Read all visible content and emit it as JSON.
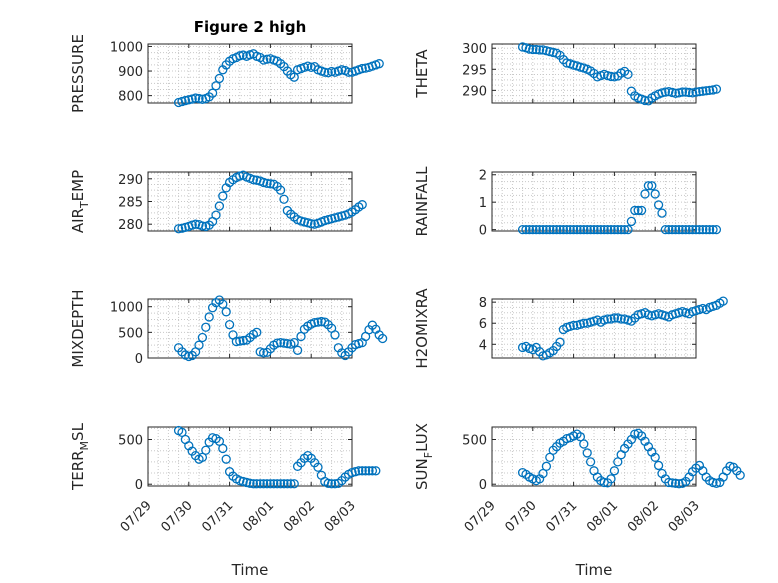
{
  "chart_data": [
    {
      "type": "scatter",
      "title": "Figure 2 high",
      "ylabel": "PRESSURE",
      "xlabel": "",
      "ylim": [
        770,
        1010
      ],
      "yticks": [
        800,
        900,
        1000
      ],
      "show_xticklabels": false,
      "grid": true,
      "marker": "circle",
      "color": "#0072BD",
      "x_start": "07/29 18:00",
      "x_step_hours": 2,
      "values": [
        772,
        776,
        780,
        783,
        786,
        790,
        788,
        785,
        788,
        795,
        810,
        840,
        870,
        905,
        925,
        940,
        950,
        955,
        962,
        965,
        960,
        966,
        970,
        960,
        955,
        945,
        948,
        950,
        945,
        940,
        930,
        918,
        900,
        885,
        875,
        905,
        910,
        915,
        920,
        915,
        918,
        905,
        900,
        895,
        893,
        898,
        895,
        900,
        905,
        902,
        895,
        895,
        900,
        905,
        910,
        912,
        915,
        920,
        925,
        930
      ]
    },
    {
      "type": "scatter",
      "title": "",
      "ylabel": "THETA",
      "xlabel": "",
      "ylim": [
        287,
        301
      ],
      "yticks": [
        290,
        295,
        300
      ],
      "show_xticklabels": false,
      "grid": true,
      "marker": "circle",
      "color": "#0072BD",
      "x_start": "07/29 18:00",
      "x_step_hours": 2,
      "values": [
        300.3,
        300.1,
        299.8,
        299.7,
        299.7,
        299.6,
        299.6,
        299.4,
        299.2,
        299.0,
        298.8,
        298.3,
        297.3,
        296.5,
        296.3,
        296.0,
        295.8,
        295.5,
        295.3,
        295.0,
        294.6,
        294.0,
        293.2,
        293.5,
        293.8,
        293.5,
        293.3,
        293.2,
        293.4,
        294.1,
        294.5,
        293.8,
        289.8,
        288.7,
        288.2,
        287.9,
        287.6,
        287.5,
        288.2,
        288.7,
        289.1,
        289.4,
        289.6,
        289.7,
        289.5,
        289.3,
        289.4,
        289.6,
        289.6,
        289.5,
        289.4,
        289.6,
        289.7,
        289.8,
        289.9,
        290.0,
        290.1,
        290.3
      ]
    },
    {
      "type": "scatter",
      "title": "",
      "ylabel": "AIR_TEMP",
      "ylabel_parts": [
        "AIR",
        "T",
        "EMP"
      ],
      "xlabel": "",
      "ylim": [
        278.5,
        291.5
      ],
      "yticks": [
        280,
        285,
        290
      ],
      "show_xticklabels": false,
      "grid": true,
      "marker": "circle",
      "color": "#0072BD",
      "x_start": "07/29 18:00",
      "x_step_hours": 2,
      "values": [
        279.0,
        279.1,
        279.3,
        279.5,
        279.8,
        280.0,
        279.9,
        279.6,
        279.5,
        279.8,
        280.6,
        282.0,
        284.0,
        286.2,
        288.0,
        289.2,
        289.8,
        290.3,
        290.6,
        290.8,
        290.4,
        290.1,
        289.8,
        289.7,
        289.5,
        289.2,
        289.0,
        288.9,
        288.8,
        288.3,
        287.5,
        285.5,
        283.0,
        282.2,
        281.6,
        281.0,
        280.7,
        280.5,
        280.3,
        280.1,
        280.0,
        280.2,
        280.5,
        280.8,
        281.0,
        281.2,
        281.4,
        281.6,
        281.8,
        282.0,
        282.3,
        282.7,
        283.2,
        283.8,
        284.3
      ]
    },
    {
      "type": "scatter",
      "title": "",
      "ylabel": "RAINFALL",
      "xlabel": "",
      "ylim": [
        -0.05,
        2.1
      ],
      "yticks": [
        0,
        1,
        2
      ],
      "show_xticklabels": false,
      "grid": true,
      "marker": "circle",
      "color": "#0072BD",
      "x_start": "07/29 18:00",
      "x_step_hours": 2,
      "values": [
        0,
        0,
        0,
        0,
        0,
        0,
        0,
        0,
        0,
        0,
        0,
        0,
        0,
        0,
        0,
        0,
        0,
        0,
        0,
        0,
        0,
        0,
        0,
        0,
        0,
        0,
        0,
        0,
        0,
        0,
        0,
        0,
        0.3,
        0.7,
        0.7,
        0.7,
        1.3,
        1.6,
        1.6,
        1.3,
        0.9,
        0.6,
        0,
        0,
        0,
        0,
        0,
        0,
        0,
        0,
        0,
        0,
        0,
        0,
        0,
        0,
        0,
        0
      ]
    },
    {
      "type": "scatter",
      "title": "",
      "ylabel": "MIXDEPTH",
      "xlabel": "",
      "ylim": [
        0,
        1150
      ],
      "yticks": [
        0,
        500,
        1000
      ],
      "show_xticklabels": false,
      "grid": true,
      "marker": "circle",
      "color": "#0072BD",
      "x_start": "07/29 18:00",
      "x_step_hours": 2,
      "values": [
        200,
        120,
        60,
        30,
        50,
        120,
        250,
        400,
        600,
        800,
        980,
        1080,
        1130,
        1050,
        900,
        650,
        450,
        320,
        330,
        340,
        350,
        400,
        460,
        500,
        120,
        100,
        110,
        180,
        250,
        290,
        300,
        290,
        280,
        270,
        300,
        150,
        420,
        560,
        620,
        660,
        690,
        700,
        710,
        700,
        650,
        580,
        450,
        200,
        100,
        50,
        120,
        200,
        260,
        280,
        300,
        420,
        550,
        640,
        560,
        450,
        380
      ]
    },
    {
      "type": "scatter",
      "title": "",
      "ylabel": "H2OMIXRA",
      "xlabel": "",
      "ylim": [
        2.7,
        8.3
      ],
      "yticks": [
        4,
        6,
        8
      ],
      "show_xticklabels": false,
      "grid": true,
      "marker": "circle",
      "color": "#0072BD",
      "x_start": "07/29 18:00",
      "x_step_hours": 2,
      "values": [
        3.7,
        3.8,
        3.6,
        3.5,
        3.7,
        3.3,
        2.9,
        3.0,
        3.2,
        3.4,
        3.8,
        4.2,
        5.4,
        5.6,
        5.7,
        5.8,
        5.8,
        5.9,
        6.0,
        6.0,
        6.1,
        6.2,
        6.3,
        6.1,
        6.3,
        6.4,
        6.4,
        6.5,
        6.5,
        6.4,
        6.4,
        6.3,
        6.2,
        6.5,
        6.8,
        6.9,
        7.0,
        6.8,
        6.7,
        6.8,
        6.9,
        6.8,
        6.7,
        6.6,
        6.8,
        6.9,
        7.0,
        7.1,
        7.0,
        6.9,
        7.1,
        7.2,
        7.3,
        7.4,
        7.3,
        7.5,
        7.6,
        7.7,
        7.9,
        8.1
      ]
    },
    {
      "type": "scatter",
      "title": "",
      "ylabel": "TERR_MSL",
      "ylabel_parts": [
        "TERR",
        "M",
        "SL"
      ],
      "xlabel": "Time",
      "ylim": [
        -20,
        640
      ],
      "yticks": [
        0,
        500
      ],
      "xticks": [
        "07/29",
        "07/30",
        "07/31",
        "08/01",
        "08/02",
        "08/03"
      ],
      "show_xticklabels": true,
      "grid": true,
      "marker": "circle",
      "color": "#0072BD",
      "x_start": "07/29 18:00",
      "x_step_hours": 2,
      "values": [
        600,
        580,
        500,
        430,
        370,
        320,
        280,
        300,
        380,
        470,
        520,
        510,
        480,
        400,
        280,
        140,
        90,
        60,
        40,
        30,
        20,
        10,
        5,
        5,
        5,
        5,
        5,
        5,
        5,
        5,
        5,
        5,
        5,
        5,
        5,
        200,
        240,
        290,
        320,
        290,
        240,
        190,
        100,
        30,
        10,
        5,
        5,
        10,
        40,
        80,
        110,
        130,
        140,
        150,
        150,
        150,
        150,
        150,
        150
      ]
    },
    {
      "type": "scatter",
      "title": "",
      "ylabel": "SUN_FLUX",
      "ylabel_parts": [
        "SUN",
        "F",
        "LUX"
      ],
      "xlabel": "Time",
      "ylim": [
        -20,
        640
      ],
      "yticks": [
        0,
        500
      ],
      "xticks": [
        "07/29",
        "07/30",
        "07/31",
        "08/01",
        "08/02",
        "08/03"
      ],
      "show_xticklabels": true,
      "grid": true,
      "marker": "circle",
      "color": "#0072BD",
      "x_start": "07/29 18:00",
      "x_step_hours": 2,
      "values": [
        130,
        110,
        80,
        60,
        40,
        60,
        120,
        200,
        300,
        380,
        420,
        460,
        480,
        510,
        520,
        540,
        560,
        530,
        450,
        350,
        250,
        150,
        80,
        40,
        20,
        15,
        60,
        150,
        250,
        330,
        400,
        450,
        500,
        560,
        570,
        540,
        480,
        420,
        360,
        300,
        210,
        120,
        60,
        20,
        15,
        10,
        5,
        10,
        30,
        80,
        140,
        180,
        210,
        150,
        80,
        40,
        20,
        10,
        20,
        80,
        150,
        200,
        190,
        150,
        100
      ]
    }
  ]
}
